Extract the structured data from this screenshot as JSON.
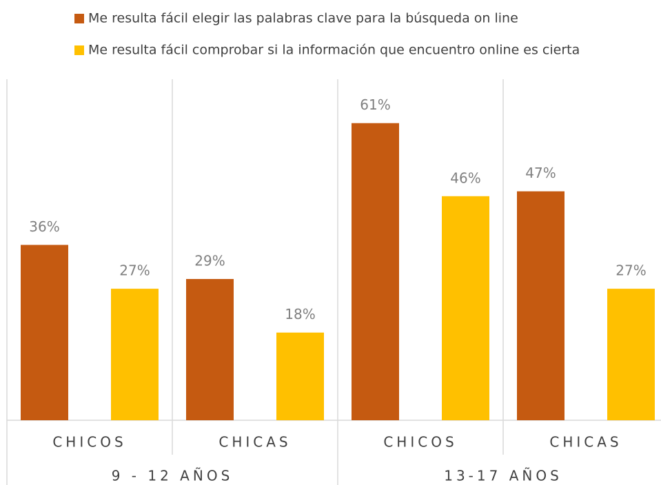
{
  "chart_data": {
    "type": "bar",
    "categories": [
      "CHICOS",
      "CHICAS",
      "CHICOS",
      "CHICAS"
    ],
    "groups": [
      "9 - 12 AÑOS",
      "13-17 AÑOS"
    ],
    "series": [
      {
        "name": "Me resulta fácil elegir las palabras clave para la búsqueda on line",
        "color": "#c55a11",
        "values": [
          36,
          29,
          61,
          47
        ],
        "value_labels": [
          "36%",
          "29%",
          "61%",
          "47%"
        ]
      },
      {
        "name": "Me resulta fácil comprobar si la información que encuentro online es cierta",
        "color": "#ffc000",
        "values": [
          27,
          18,
          46,
          27
        ],
        "value_labels": [
          "27%",
          "18%",
          "46%",
          "27%"
        ]
      }
    ],
    "legend": "top"
  }
}
